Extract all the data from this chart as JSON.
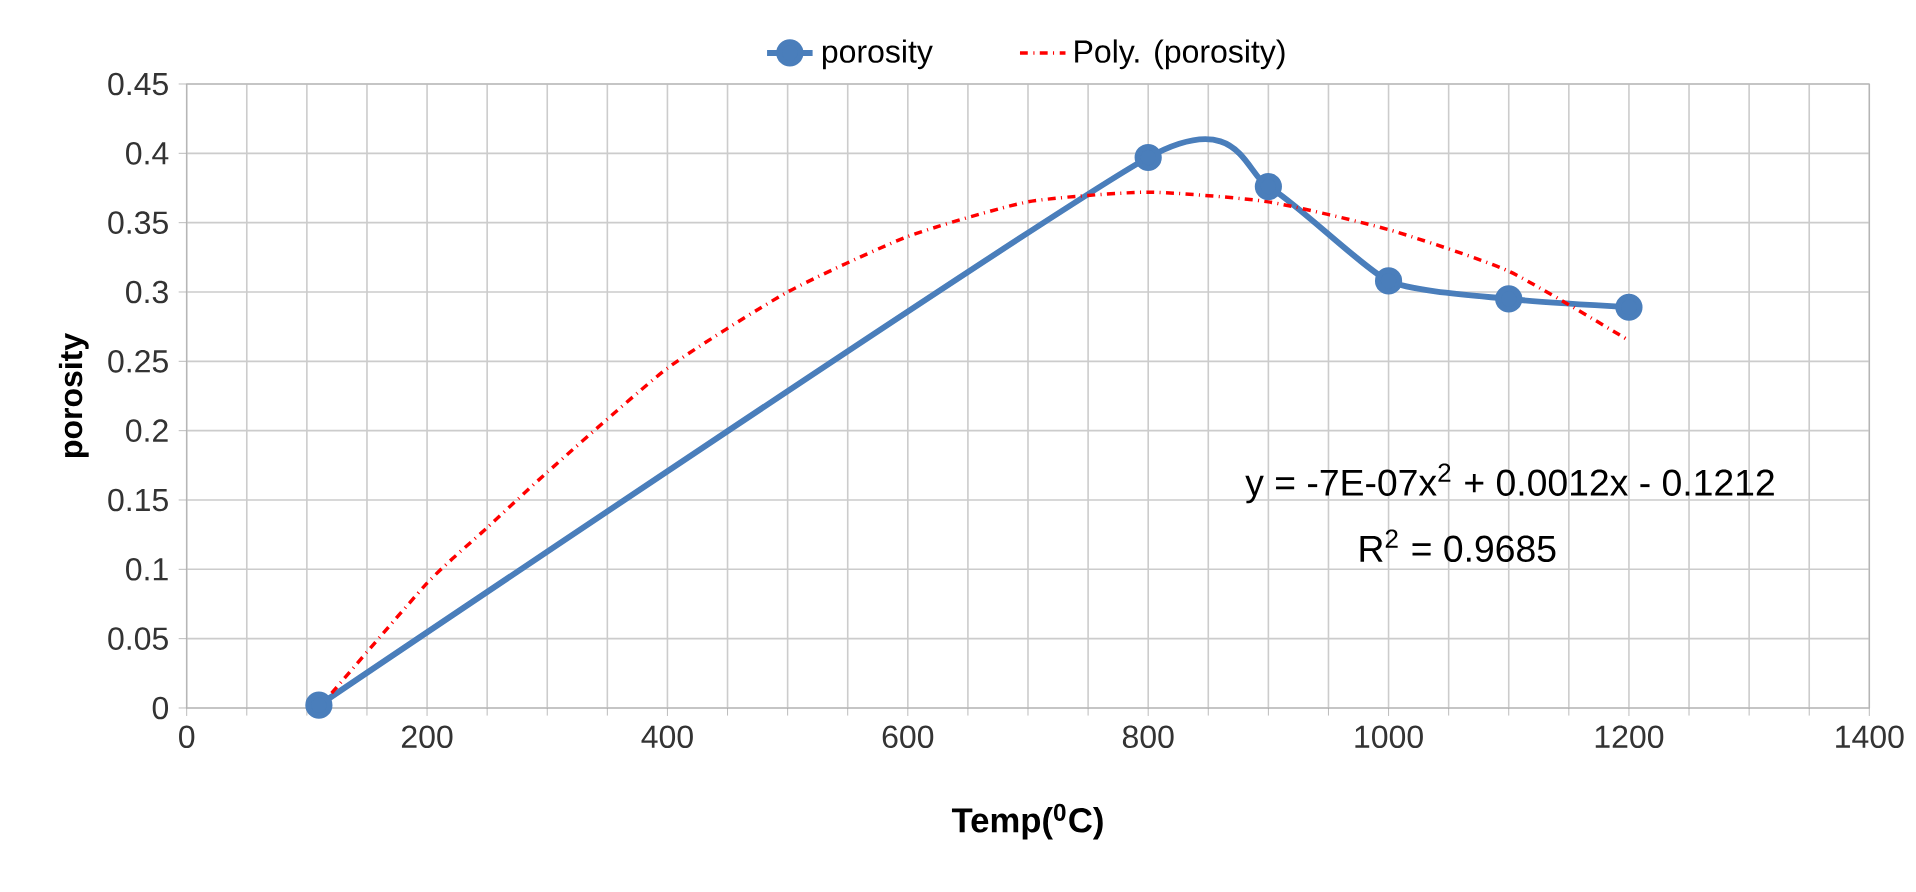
{
  "chart_data": {
    "type": "line",
    "xlabel": "Temp($^{0}$C)",
    "ylabel": "porosity",
    "series": [
      {
        "name": "porosity",
        "color": "#4a7ebb",
        "type": "line",
        "marker": "circle",
        "line_style": "solid",
        "x": [
          110,
          800,
          900,
          1000,
          1100,
          1200
        ],
        "values": [
          0.002,
          0.397,
          0.376,
          0.308,
          0.295,
          0.289
        ]
      },
      {
        "name": "Poly. (porosity)",
        "color": "#ff0000",
        "type": "line",
        "marker": "none",
        "line_style": "dashdot",
        "x": [
          110,
          200,
          250,
          300,
          400,
          500,
          600,
          700,
          800,
          900,
          1000,
          1100,
          1200
        ],
        "values": [
          0.0,
          0.09,
          0.13,
          0.17,
          0.245,
          0.3,
          0.34,
          0.365,
          0.372,
          0.365,
          0.345,
          0.315,
          0.265
        ]
      }
    ],
    "xlim": [
      0,
      1400
    ],
    "xticks": [
      0,
      200,
      400,
      600,
      800,
      1000,
      1200,
      1400
    ],
    "ylim": [
      0,
      0.45
    ],
    "yticks": [
      {
        "value": 0,
        "label": "0"
      },
      {
        "value": 0.05,
        "label": "0.05"
      },
      {
        "value": 0.1,
        "label": "0.1"
      },
      {
        "value": 0.15,
        "label": "0.15"
      },
      {
        "value": 0.2,
        "label": "0.2"
      },
      {
        "value": 0.25,
        "label": "0.25"
      },
      {
        "value": 0.3,
        "label": "0.3"
      },
      {
        "value": 0.35,
        "label": "0.35"
      },
      {
        "value": 0.4,
        "label": "0.4"
      },
      {
        "value": 0.45,
        "label": "0.45"
      }
    ],
    "grid": true,
    "legend": "top",
    "annotations": [
      "y = -7E-07x$^{2}$ + 0.0012x - 0.1212",
      "R$^{2}$ = 0.9685"
    ]
  }
}
